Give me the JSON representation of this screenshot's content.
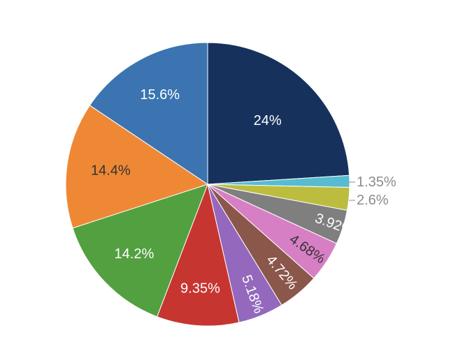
{
  "chart_data": {
    "type": "pie",
    "start_angle_deg": 0,
    "direction": "clockwise",
    "slices": [
      {
        "label": "24%",
        "value": 24.0,
        "color": "#16325c",
        "label_color": "#ffffff",
        "label_inside": true
      },
      {
        "label": "1.35%",
        "value": 1.35,
        "color": "#57bcd0",
        "label_color": "#8c8c8c",
        "label_inside": false
      },
      {
        "label": "2.6%",
        "value": 2.6,
        "color": "#bcbd3f",
        "label_color": "#8c8c8c",
        "label_inside": false
      },
      {
        "label": "3.92%",
        "value": 3.92,
        "color": "#7f7f7f",
        "label_color": "#ffffff",
        "label_inside": true
      },
      {
        "label": "4.68%",
        "value": 4.68,
        "color": "#d77fc4",
        "label_color": "#333333",
        "label_inside": true
      },
      {
        "label": "4.72%",
        "value": 4.72,
        "color": "#8b574b",
        "label_color": "#ffffff",
        "label_inside": true
      },
      {
        "label": "5.18%",
        "value": 5.18,
        "color": "#9468bd",
        "label_color": "#ffffff",
        "label_inside": true
      },
      {
        "label": "9.35%",
        "value": 9.35,
        "color": "#c73531",
        "label_color": "#ffffff",
        "label_inside": true
      },
      {
        "label": "14.2%",
        "value": 14.2,
        "color": "#53a040",
        "label_color": "#ffffff",
        "label_inside": true
      },
      {
        "label": "14.4%",
        "value": 14.4,
        "color": "#ef8835",
        "label_color": "#333333",
        "label_inside": true
      },
      {
        "label": "15.6%",
        "value": 15.6,
        "color": "#3b74b1",
        "label_color": "#ffffff",
        "label_inside": true
      }
    ]
  }
}
